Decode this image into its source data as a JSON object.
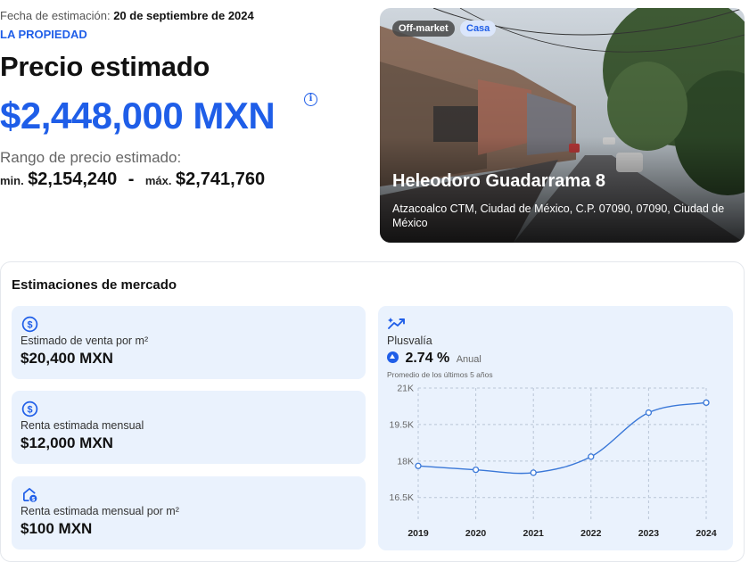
{
  "header": {
    "date_label": "Fecha de estimación:",
    "date_value": "20 de septiembre de 2024",
    "section_label": "LA PROPIEDAD",
    "price_title": "Precio estimado",
    "price_value": "$2,448,000 MXN",
    "info_icon": "info-icon",
    "range_label": "Rango de precio estimado:",
    "min_label": "min.",
    "min_value": "$2,154,240",
    "separator": "-",
    "max_label": "máx.",
    "max_value": "$2,741,760"
  },
  "property": {
    "badge_market": "Off-market",
    "badge_type": "Casa",
    "street": "Heleodoro Guadarrama 8",
    "address": "Atzacoalco CTM, Ciudad de México, C.P. 07090, 07090, Ciudad de México"
  },
  "market": {
    "title": "Estimaciones de mercado",
    "cards": [
      {
        "icon": "dollar-circle-icon",
        "label": "Estimado de venta por m²",
        "value": "$20,400 MXN"
      },
      {
        "icon": "dollar-circle-icon",
        "label": "Renta estimada mensual",
        "value": "$12,000 MXN"
      },
      {
        "icon": "house-dollar-icon",
        "label": "Renta estimada mensual por m²",
        "value": "$100 MXN"
      }
    ],
    "plusvalia": {
      "icon": "trend-up-icon",
      "label": "Plusvalía",
      "value": "2.74 %",
      "period": "Anual",
      "note": "Promedio de los últimos 5 años"
    }
  },
  "colors": {
    "accent": "#1f5ee8",
    "card_bg": "#eaf2fd",
    "line": "#3a78d8"
  },
  "chart_data": {
    "type": "line",
    "x": [
      "2019",
      "2020",
      "2021",
      "2022",
      "2023",
      "2024"
    ],
    "values": [
      17800,
      17640,
      17520,
      18180,
      19990,
      20400
    ],
    "yticks": [
      16500,
      18000,
      19500,
      21000
    ],
    "ytick_labels": [
      "16.5K",
      "18K",
      "19.5K",
      "21K"
    ],
    "ylim": [
      15500,
      21000
    ],
    "grid": true,
    "title": "",
    "xlabel": "",
    "ylabel": ""
  }
}
